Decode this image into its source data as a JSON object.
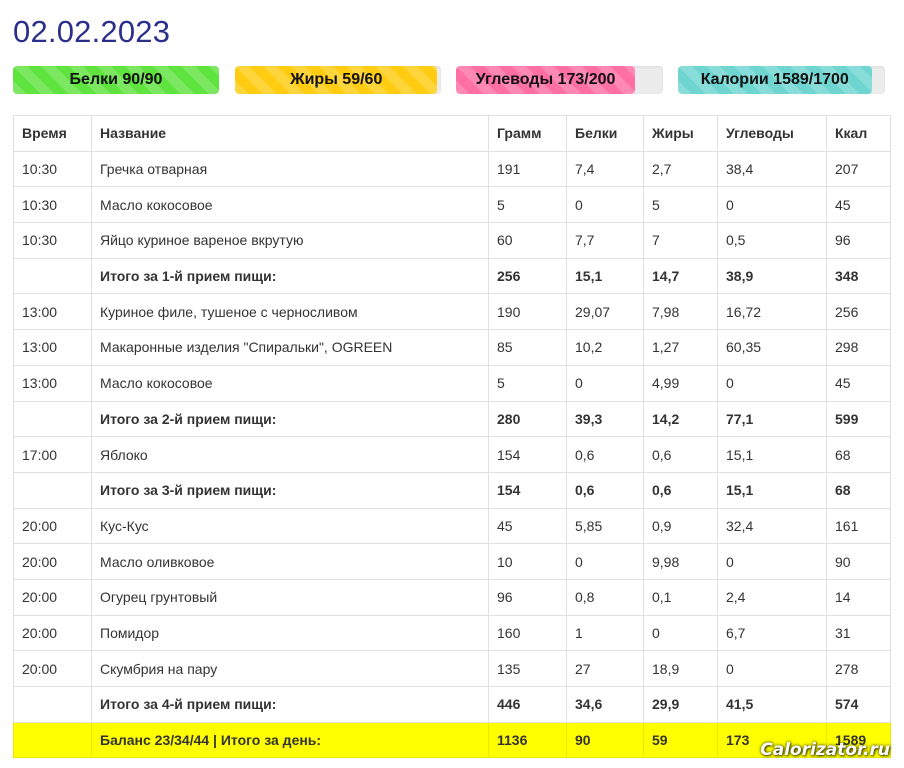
{
  "date": "02.02.2023",
  "progress": [
    {
      "label": "Белки 90/90",
      "fraction": 1.0,
      "color": "#5fe33e"
    },
    {
      "label": "Жиры 59/60",
      "fraction": 0.983,
      "color": "#ffcc11"
    },
    {
      "label": "Углеводы 173/200",
      "fraction": 0.865,
      "color": "#ff6fa1"
    },
    {
      "label": "Калории 1589/1700",
      "fraction": 0.935,
      "color": "#6fd5d0"
    }
  ],
  "table": {
    "headers": [
      "Время",
      "Название",
      "Грамм",
      "Белки",
      "Жиры",
      "Углеводы",
      "Ккал"
    ],
    "rows": [
      {
        "type": "item",
        "cells": [
          "10:30",
          "Гречка отварная",
          "191",
          "7,4",
          "2,7",
          "38,4",
          "207"
        ]
      },
      {
        "type": "item",
        "cells": [
          "10:30",
          "Масло кокосовое",
          "5",
          "0",
          "5",
          "0",
          "45"
        ]
      },
      {
        "type": "item",
        "cells": [
          "10:30",
          "Яйцо куриное вареное вкрутую",
          "60",
          "7,7",
          "7",
          "0,5",
          "96"
        ]
      },
      {
        "type": "total",
        "cells": [
          "",
          "Итого за 1-й прием пищи:",
          "256",
          "15,1",
          "14,7",
          "38,9",
          "348"
        ]
      },
      {
        "type": "item",
        "cells": [
          "13:00",
          "Куриное филе, тушеное с черносливом",
          "190",
          "29,07",
          "7,98",
          "16,72",
          "256"
        ]
      },
      {
        "type": "item",
        "cells": [
          "13:00",
          "Макаронные изделия \"Спиральки\", OGREEN",
          "85",
          "10,2",
          "1,27",
          "60,35",
          "298"
        ]
      },
      {
        "type": "item",
        "cells": [
          "13:00",
          "Масло кокосовое",
          "5",
          "0",
          "4,99",
          "0",
          "45"
        ]
      },
      {
        "type": "total",
        "cells": [
          "",
          "Итого за 2-й прием пищи:",
          "280",
          "39,3",
          "14,2",
          "77,1",
          "599"
        ]
      },
      {
        "type": "item",
        "cells": [
          "17:00",
          "Яблоко",
          "154",
          "0,6",
          "0,6",
          "15,1",
          "68"
        ]
      },
      {
        "type": "total",
        "cells": [
          "",
          "Итого за 3-й прием пищи:",
          "154",
          "0,6",
          "0,6",
          "15,1",
          "68"
        ]
      },
      {
        "type": "item",
        "cells": [
          "20:00",
          "Кус-Кус",
          "45",
          "5,85",
          "0,9",
          "32,4",
          "161"
        ]
      },
      {
        "type": "item",
        "cells": [
          "20:00",
          "Масло оливковое",
          "10",
          "0",
          "9,98",
          "0",
          "90"
        ]
      },
      {
        "type": "item",
        "cells": [
          "20:00",
          "Огурец грунтовый",
          "96",
          "0,8",
          "0,1",
          "2,4",
          "14"
        ]
      },
      {
        "type": "item",
        "cells": [
          "20:00",
          "Помидор",
          "160",
          "1",
          "0",
          "6,7",
          "31"
        ]
      },
      {
        "type": "item",
        "cells": [
          "20:00",
          "Скумбрия на пару",
          "135",
          "27",
          "18,9",
          "0",
          "278"
        ]
      },
      {
        "type": "total",
        "cells": [
          "",
          "Итого за 4-й прием пищи:",
          "446",
          "34,6",
          "29,9",
          "41,5",
          "574"
        ]
      },
      {
        "type": "balance",
        "cells": [
          "",
          "Баланс 23/34/44 | Итого за день:",
          "1136",
          "90",
          "59",
          "173",
          "1589"
        ]
      }
    ]
  },
  "watermark": "Calorizator.ru"
}
